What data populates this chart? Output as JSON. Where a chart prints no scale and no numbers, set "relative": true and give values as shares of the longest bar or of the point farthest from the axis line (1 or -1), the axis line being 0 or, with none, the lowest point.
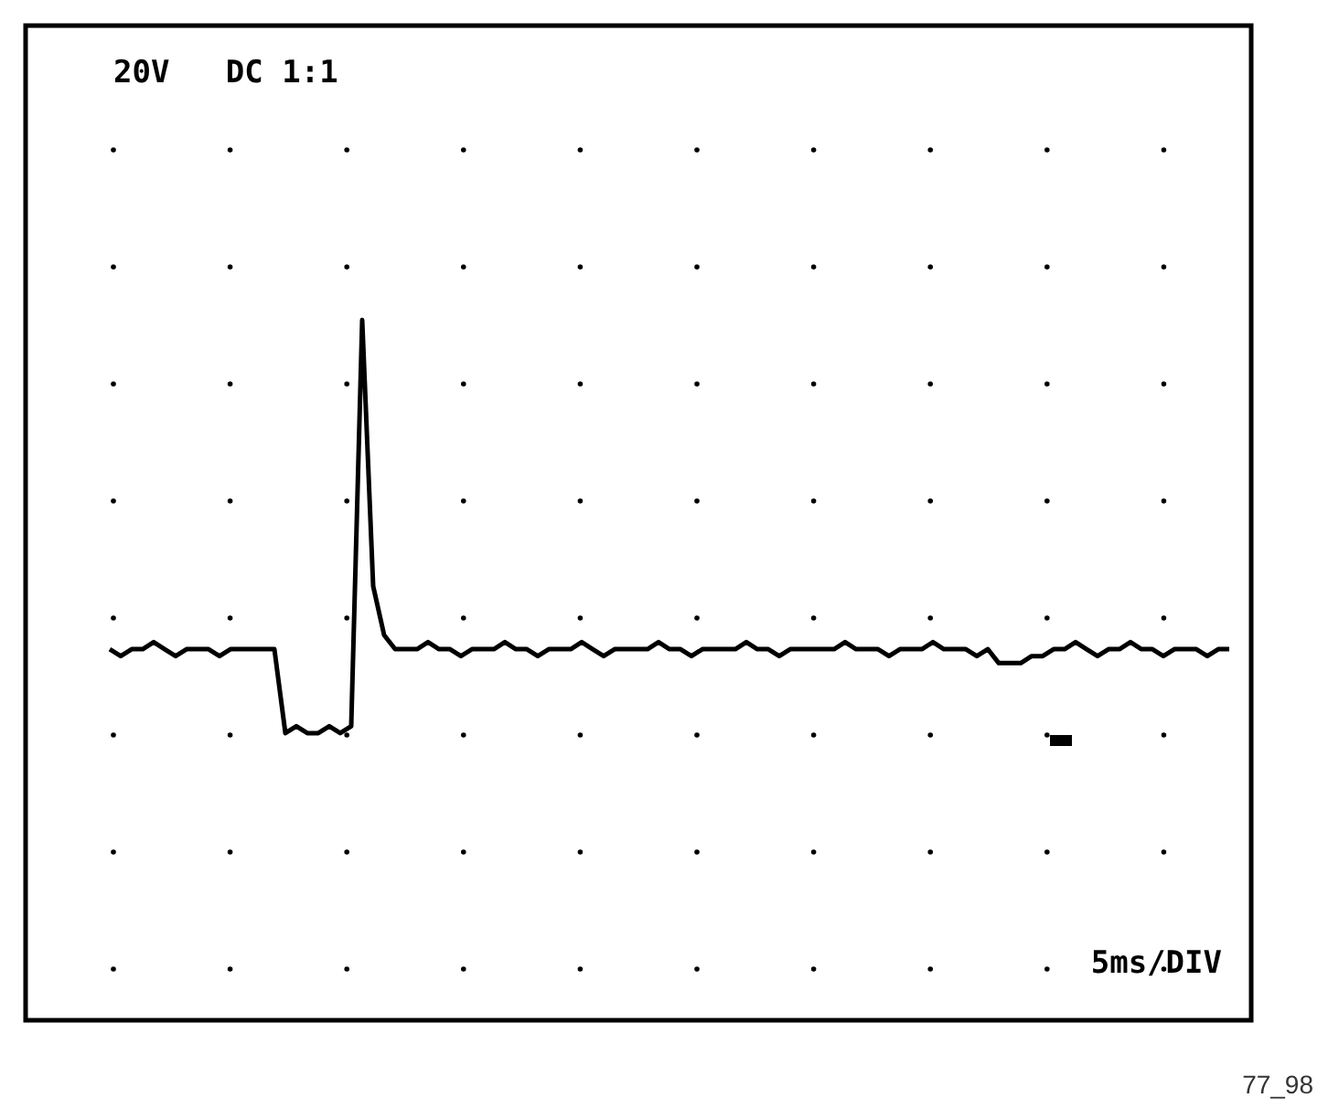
{
  "chart_data": {
    "type": "line",
    "relative": true,
    "color": "#000000",
    "annotations": [
      "20V   DC 1:1",
      "5ms/DIV",
      "77_98"
    ],
    "categories": [
      null,
      null,
      null,
      null,
      null,
      null,
      null,
      null,
      null,
      null,
      null,
      null,
      null,
      null,
      null,
      null,
      null,
      null,
      null,
      null,
      null,
      null,
      null,
      null,
      null,
      null,
      null,
      null,
      null,
      null,
      null,
      null,
      null,
      null,
      null,
      null,
      null,
      null,
      null,
      null,
      null,
      null,
      null,
      null,
      null,
      null,
      null,
      null,
      null,
      null,
      null,
      null,
      null,
      null,
      null,
      null,
      null,
      null,
      null,
      null,
      null,
      null,
      null,
      null,
      null,
      null,
      null,
      null,
      null,
      null,
      null,
      null,
      null,
      null,
      null,
      null,
      null,
      null,
      null,
      null,
      null,
      null,
      null,
      null,
      null,
      null,
      null,
      null,
      null,
      null,
      null,
      null,
      null,
      null,
      null,
      null,
      null,
      null,
      null,
      null,
      null,
      null,
      null
    ],
    "values": [
      0.53,
      0.52,
      0.53,
      0.53,
      0.54,
      0.53,
      0.52,
      0.53,
      0.53,
      0.53,
      0.52,
      0.53,
      0.53,
      0.53,
      0.53,
      0.53,
      0.41,
      0.42,
      0.41,
      0.41,
      0.42,
      0.41,
      0.42,
      1,
      0.62,
      0.55,
      0.53,
      0.53,
      0.53,
      0.54,
      0.53,
      0.53,
      0.52,
      0.53,
      0.53,
      0.53,
      0.54,
      0.53,
      0.53,
      0.52,
      0.53,
      0.53,
      0.53,
      0.54,
      0.53,
      0.52,
      0.53,
      0.53,
      0.53,
      0.53,
      0.54,
      0.53,
      0.53,
      0.52,
      0.53,
      0.53,
      0.53,
      0.53,
      0.54,
      0.53,
      0.53,
      0.52,
      0.53,
      0.53,
      0.53,
      0.53,
      0.53,
      0.54,
      0.53,
      0.53,
      0.53,
      0.52,
      0.53,
      0.53,
      0.53,
      0.54,
      0.53,
      0.53,
      0.53,
      0.52,
      0.53,
      0.51,
      0.51,
      0.51,
      0.52,
      0.52,
      0.53,
      0.53,
      0.54,
      0.53,
      0.52,
      0.53,
      0.53,
      0.54,
      0.53,
      0.53,
      0.52,
      0.53,
      0.53,
      0.53,
      0.52,
      0.53,
      0.53
    ]
  }
}
